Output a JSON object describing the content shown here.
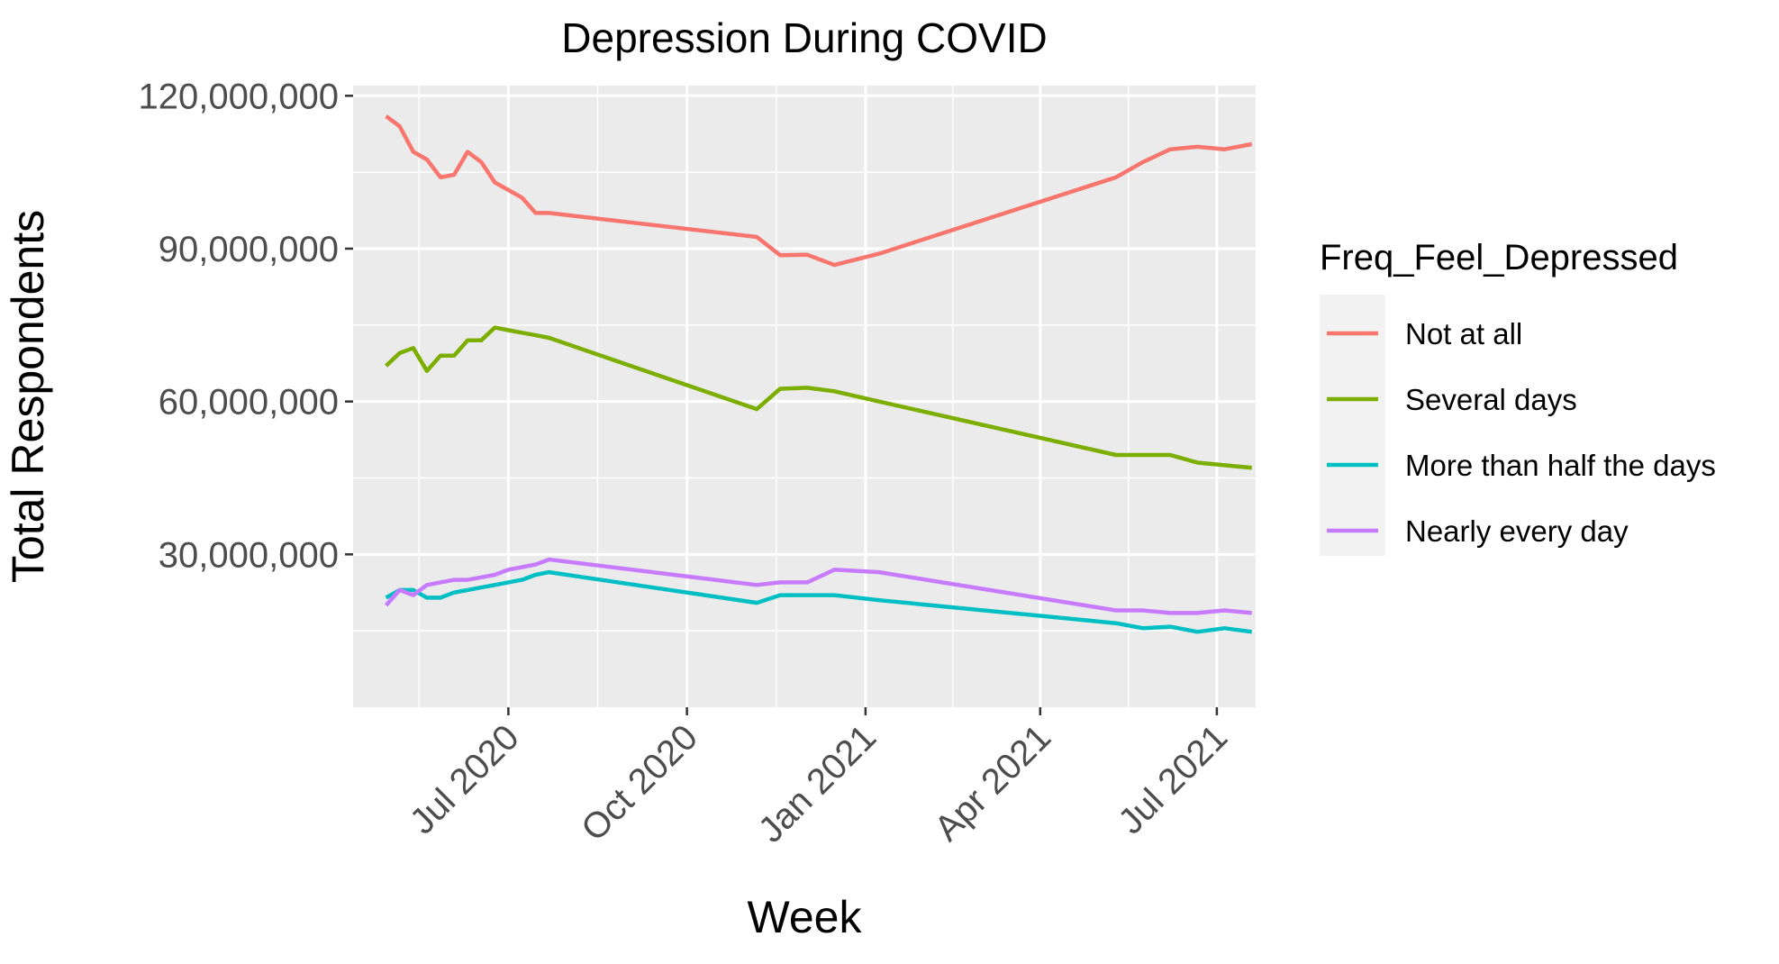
{
  "chart_data": {
    "type": "line",
    "title": "Depression During COVID",
    "xlabel": "Week",
    "ylabel": "Total Respondents",
    "legend_title": "Freq_Feel_Depressed",
    "legend_position": "right",
    "grid": true,
    "x_type": "date",
    "xlim": [
      "2020-04-12",
      "2021-07-21"
    ],
    "ylim": [
      0,
      122000000
    ],
    "x_ticks": [
      {
        "date": "2020-07-01",
        "label": "Jul 2020"
      },
      {
        "date": "2020-10-01",
        "label": "Oct 2020"
      },
      {
        "date": "2021-01-01",
        "label": "Jan 2021"
      },
      {
        "date": "2021-04-01",
        "label": "Apr 2021"
      },
      {
        "date": "2021-07-01",
        "label": "Jul 2021"
      }
    ],
    "y_ticks": [
      {
        "value": 30000000,
        "label": "30,000,000"
      },
      {
        "value": 60000000,
        "label": "60,000,000"
      },
      {
        "value": 90000000,
        "label": "90,000,000"
      },
      {
        "value": 120000000,
        "label": "120,000,000"
      }
    ],
    "x": [
      "2020-04-29",
      "2020-05-06",
      "2020-05-13",
      "2020-05-20",
      "2020-05-27",
      "2020-06-03",
      "2020-06-10",
      "2020-06-17",
      "2020-06-24",
      "2020-07-01",
      "2020-07-08",
      "2020-07-15",
      "2020-07-22",
      "2020-11-06",
      "2020-11-18",
      "2020-12-02",
      "2020-12-16",
      "2021-01-08",
      "2021-05-10",
      "2021-05-24",
      "2021-06-07",
      "2021-06-21",
      "2021-07-05",
      "2021-07-19"
    ],
    "series": [
      {
        "name": "Not at all",
        "color": "#F8766D",
        "values": [
          116000000,
          114000000,
          109000000,
          107500000,
          104000000,
          104500000,
          109000000,
          107000000,
          103000000,
          101500000,
          100000000,
          97000000,
          97000000,
          92300000,
          88700000,
          88800000,
          86800000,
          89000000,
          104000000,
          107000000,
          109500000,
          110000000,
          109500000,
          110500000
        ]
      },
      {
        "name": "Several days",
        "color": "#7CAE00",
        "values": [
          67000000,
          69500000,
          70500000,
          66000000,
          69000000,
          69000000,
          72000000,
          72000000,
          74500000,
          74000000,
          73500000,
          73000000,
          72500000,
          58500000,
          62500000,
          62700000,
          62000000,
          60000000,
          49500000,
          49500000,
          49500000,
          48000000,
          47500000,
          47000000
        ]
      },
      {
        "name": "More than half the days",
        "color": "#00BFC4",
        "values": [
          21500000,
          23000000,
          23000000,
          21500000,
          21500000,
          22500000,
          23000000,
          23500000,
          24000000,
          24500000,
          25000000,
          26000000,
          26500000,
          20500000,
          22000000,
          22000000,
          22000000,
          21000000,
          16500000,
          15500000,
          15800000,
          14800000,
          15500000,
          14800000
        ]
      },
      {
        "name": "Nearly every day",
        "color": "#C77CFF",
        "values": [
          20000000,
          23000000,
          22000000,
          24000000,
          24500000,
          25000000,
          25000000,
          25500000,
          26000000,
          27000000,
          27500000,
          28000000,
          29000000,
          24000000,
          24500000,
          24500000,
          27000000,
          26500000,
          19000000,
          19000000,
          18500000,
          18500000,
          19000000,
          18500000
        ]
      }
    ]
  }
}
